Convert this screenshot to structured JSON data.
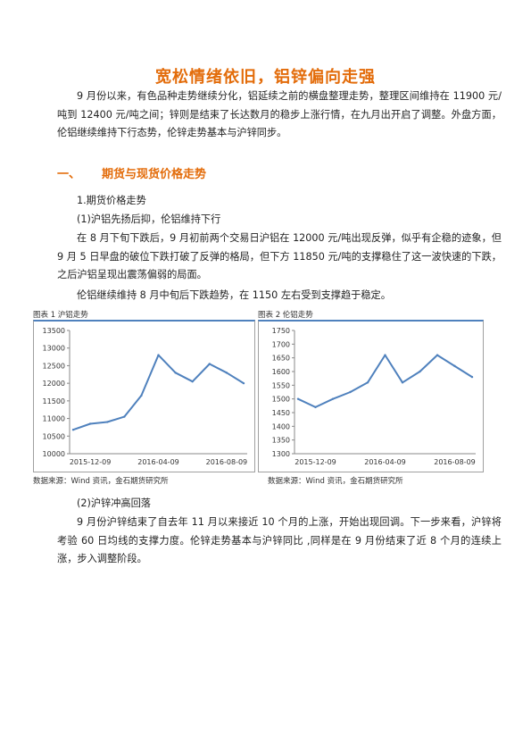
{
  "title": "宽松情绪依旧，铝锌偏向走强",
  "intro": "9 月份以来，有色品种走势继续分化，铝延续之前的横盘整理走势，整理区间维持在 11900 元/吨到 12400 元/吨之间；锌则是结束了长达数月的稳步上涨行情，在九月出开启了调整。外盘方面，伦铝继续维持下行态势，伦锌走势基本与沪锌同步。",
  "section": {
    "num": "一、",
    "title": "期货与现货价格走势"
  },
  "sub1": "1.期货价格走势",
  "sub1a": "(1)沪铝先扬后抑，伦铝维持下行",
  "para_al": "在 8 月下旬下跌后，9 月初前两个交易日沪铝在 12000 元/吨出现反弹，似乎有企稳的迹象，但 9 月 5 日早盘的破位下跌打破了反弹的格局，但下方 11850 元/吨的支撑稳住了这一波快速的下跌，之后沪铝呈现出震荡偏弱的局面。",
  "para_lme": "伦铝继续维持 8 月中旬后下跌趋势，在 1150 左右受到支撑趋于稳定。",
  "chart1_caption": "图表 1  沪铝走势",
  "chart2_caption": "图表 2  伦铝走势",
  "source1": "数据来源：Wind 资讯，金石期货研究所",
  "source2": "数据来源：Wind 资讯，金石期货研究所",
  "sub1b": "(2)沪锌冲高回落",
  "para_zn": "9 月份沪锌结束了自去年 11 月以来接近 10 个月的上涨，开始出现回调。下一步来看，沪锌将考验 60 日均线的支撑力度。伦锌走势基本与沪锌同比 ,同样是在 9 月份结束了近 8 个月的连续上涨，步入调整阶段。",
  "chart_data": [
    {
      "type": "line",
      "title": "沪铝走势",
      "color": "#4f81bd",
      "ylim": [
        10000,
        13500
      ],
      "yticks": [
        10000,
        10500,
        11000,
        11500,
        12000,
        12500,
        13000,
        13500
      ],
      "xticks": [
        "2015-12-09",
        "2016-04-09",
        "2016-08-09"
      ],
      "x": [
        "2015-11",
        "2015-12-09",
        "2016-01",
        "2016-02",
        "2016-03",
        "2016-04-09",
        "2016-05",
        "2016-06",
        "2016-07",
        "2016-08-09",
        "2016-09"
      ],
      "series": [
        {
          "values": [
            10680,
            10850,
            10900,
            11050,
            11650,
            12800,
            12300,
            12050,
            12550,
            12300,
            12000
          ]
        }
      ]
    },
    {
      "type": "line",
      "title": "伦铝走势",
      "color": "#4f81bd",
      "ylim": [
        1300,
        1750
      ],
      "yticks": [
        1300,
        1350,
        1400,
        1450,
        1500,
        1550,
        1600,
        1650,
        1700,
        1750
      ],
      "xticks": [
        "2015-12-09",
        "2016-04-09",
        "2016-08-09"
      ],
      "x": [
        "2015-11",
        "2015-12-09",
        "2016-01",
        "2016-02",
        "2016-03",
        "2016-04-09",
        "2016-05",
        "2016-06",
        "2016-07",
        "2016-08-09",
        "2016-09"
      ],
      "series": [
        {
          "values": [
            1500,
            1470,
            1500,
            1525,
            1560,
            1660,
            1560,
            1600,
            1660,
            1620,
            1580
          ]
        }
      ]
    }
  ]
}
